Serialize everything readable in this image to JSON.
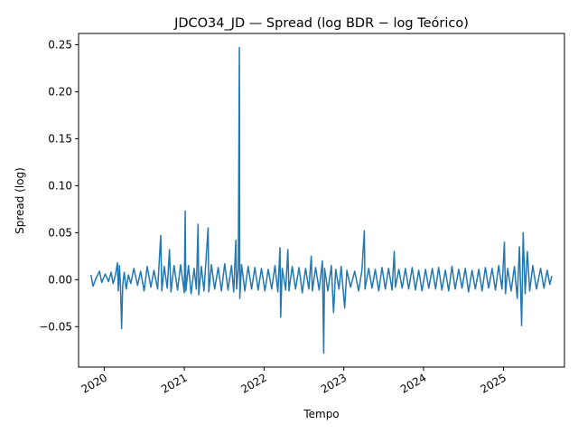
{
  "chart_data": {
    "type": "line",
    "title": "JDCO34_JD — Spread (log BDR − log Teórico)",
    "xlabel": "Tempo",
    "ylabel": "Spread (log)",
    "xlim": [
      "2019-09-05",
      "2025-10-07"
    ],
    "ylim": [
      -0.093,
      0.262
    ],
    "x_ticks": [
      {
        "date": "2020-01-01",
        "label": "2020"
      },
      {
        "date": "2021-01-01",
        "label": "2021"
      },
      {
        "date": "2022-01-01",
        "label": "2022"
      },
      {
        "date": "2023-01-01",
        "label": "2023"
      },
      {
        "date": "2024-01-01",
        "label": "2024"
      },
      {
        "date": "2025-01-01",
        "label": "2025"
      }
    ],
    "y_ticks": [
      {
        "value": -0.05,
        "label": "−0.05"
      },
      {
        "value": 0.0,
        "label": "0.00"
      },
      {
        "value": 0.05,
        "label": "0.05"
      },
      {
        "value": 0.1,
        "label": "0.10"
      },
      {
        "value": 0.15,
        "label": "0.15"
      },
      {
        "value": 0.2,
        "label": "0.20"
      },
      {
        "value": 0.25,
        "label": "0.25"
      }
    ],
    "grid": false,
    "legend": "none",
    "series": [
      {
        "color": "#1f77b4",
        "points": [
          [
            "2019-11-01",
            0.005
          ],
          [
            "2019-11-10",
            -0.007
          ],
          [
            "2019-11-25",
            0.002
          ],
          [
            "2019-12-10",
            0.009
          ],
          [
            "2019-12-20",
            -0.003
          ],
          [
            "2020-01-05",
            0.006
          ],
          [
            "2020-01-20",
            -0.002
          ],
          [
            "2020-02-01",
            0.008
          ],
          [
            "2020-02-10",
            -0.004
          ],
          [
            "2020-02-20",
            0.004
          ],
          [
            "2020-03-01",
            0.018
          ],
          [
            "2020-03-05",
            -0.012
          ],
          [
            "2020-03-10",
            0.015
          ],
          [
            "2020-03-15",
            -0.008
          ],
          [
            "2020-03-20",
            -0.052
          ],
          [
            "2020-03-25",
            -0.006
          ],
          [
            "2020-04-01",
            0.008
          ],
          [
            "2020-04-10",
            -0.01
          ],
          [
            "2020-04-20",
            0.005
          ],
          [
            "2020-05-01",
            -0.004
          ],
          [
            "2020-05-15",
            0.012
          ],
          [
            "2020-06-01",
            -0.006
          ],
          [
            "2020-06-15",
            0.009
          ],
          [
            "2020-07-01",
            -0.012
          ],
          [
            "2020-07-15",
            0.014
          ],
          [
            "2020-08-01",
            -0.008
          ],
          [
            "2020-08-15",
            0.01
          ],
          [
            "2020-09-01",
            -0.01
          ],
          [
            "2020-09-15",
            0.047
          ],
          [
            "2020-09-20",
            -0.012
          ],
          [
            "2020-10-01",
            0.014
          ],
          [
            "2020-10-15",
            -0.009
          ],
          [
            "2020-10-25",
            0.032
          ],
          [
            "2020-11-01",
            -0.013
          ],
          [
            "2020-11-15",
            0.015
          ],
          [
            "2020-12-01",
            -0.011
          ],
          [
            "2020-12-15",
            0.016
          ],
          [
            "2021-01-01",
            -0.014
          ],
          [
            "2021-01-05",
            0.073
          ],
          [
            "2021-01-08",
            -0.012
          ],
          [
            "2021-01-20",
            0.015
          ],
          [
            "2021-02-01",
            -0.015
          ],
          [
            "2021-02-15",
            0.012
          ],
          [
            "2021-02-25",
            -0.01
          ],
          [
            "2021-03-05",
            0.059
          ],
          [
            "2021-03-08",
            -0.016
          ],
          [
            "2021-03-20",
            0.014
          ],
          [
            "2021-04-01",
            -0.012
          ],
          [
            "2021-04-20",
            0.055
          ],
          [
            "2021-04-23",
            -0.013
          ],
          [
            "2021-05-05",
            0.016
          ],
          [
            "2021-05-20",
            -0.01
          ],
          [
            "2021-06-05",
            0.013
          ],
          [
            "2021-06-20",
            -0.012
          ],
          [
            "2021-07-05",
            0.017
          ],
          [
            "2021-07-20",
            -0.011
          ],
          [
            "2021-08-05",
            0.015
          ],
          [
            "2021-08-15",
            -0.013
          ],
          [
            "2021-08-25",
            0.042
          ],
          [
            "2021-08-28",
            -0.01
          ],
          [
            "2021-09-05",
            0.012
          ],
          [
            "2021-09-10",
            0.247
          ],
          [
            "2021-09-12",
            -0.02
          ],
          [
            "2021-09-20",
            0.016
          ],
          [
            "2021-10-05",
            -0.012
          ],
          [
            "2021-10-20",
            0.014
          ],
          [
            "2021-11-05",
            -0.01
          ],
          [
            "2021-11-20",
            0.013
          ],
          [
            "2021-12-05",
            -0.011
          ],
          [
            "2021-12-20",
            0.012
          ],
          [
            "2022-01-05",
            -0.012
          ],
          [
            "2022-01-20",
            0.011
          ],
          [
            "2022-02-05",
            -0.01
          ],
          [
            "2022-02-20",
            0.015
          ],
          [
            "2022-03-05",
            -0.013
          ],
          [
            "2022-03-15",
            0.034
          ],
          [
            "2022-03-18",
            -0.04
          ],
          [
            "2022-03-25",
            0.012
          ],
          [
            "2022-04-10",
            -0.011
          ],
          [
            "2022-04-20",
            0.032
          ],
          [
            "2022-04-25",
            -0.012
          ],
          [
            "2022-05-10",
            0.014
          ],
          [
            "2022-05-25",
            -0.01
          ],
          [
            "2022-06-10",
            0.013
          ],
          [
            "2022-06-25",
            -0.014
          ],
          [
            "2022-07-10",
            0.012
          ],
          [
            "2022-07-25",
            -0.01
          ],
          [
            "2022-08-05",
            0.025
          ],
          [
            "2022-08-10",
            -0.012
          ],
          [
            "2022-08-25",
            0.013
          ],
          [
            "2022-09-10",
            -0.011
          ],
          [
            "2022-09-25",
            0.02
          ],
          [
            "2022-10-01",
            -0.078
          ],
          [
            "2022-10-05",
            0.012
          ],
          [
            "2022-10-20",
            -0.012
          ],
          [
            "2022-11-05",
            0.015
          ],
          [
            "2022-11-15",
            -0.035
          ],
          [
            "2022-11-25",
            0.011
          ],
          [
            "2022-12-10",
            -0.01
          ],
          [
            "2022-12-20",
            0.014
          ],
          [
            "2023-01-05",
            -0.03
          ],
          [
            "2023-01-15",
            0.01
          ],
          [
            "2023-02-01",
            -0.008
          ],
          [
            "2023-02-20",
            0.009
          ],
          [
            "2023-03-10",
            -0.012
          ],
          [
            "2023-03-25",
            0.01
          ],
          [
            "2023-04-05",
            0.052
          ],
          [
            "2023-04-08",
            -0.01
          ],
          [
            "2023-04-25",
            0.012
          ],
          [
            "2023-05-10",
            -0.009
          ],
          [
            "2023-05-25",
            0.011
          ],
          [
            "2023-06-10",
            -0.012
          ],
          [
            "2023-06-25",
            0.013
          ],
          [
            "2023-07-10",
            -0.01
          ],
          [
            "2023-07-25",
            0.012
          ],
          [
            "2023-08-10",
            -0.011
          ],
          [
            "2023-08-20",
            0.03
          ],
          [
            "2023-08-25",
            -0.008
          ],
          [
            "2023-09-10",
            0.011
          ],
          [
            "2023-09-25",
            -0.009
          ],
          [
            "2023-10-10",
            0.012
          ],
          [
            "2023-10-25",
            -0.01
          ],
          [
            "2023-11-10",
            0.013
          ],
          [
            "2023-11-25",
            -0.011
          ],
          [
            "2023-12-10",
            0.01
          ],
          [
            "2023-12-25",
            -0.012
          ],
          [
            "2024-01-10",
            0.011
          ],
          [
            "2024-01-25",
            -0.009
          ],
          [
            "2024-02-10",
            0.012
          ],
          [
            "2024-02-25",
            -0.01
          ],
          [
            "2024-03-10",
            0.013
          ],
          [
            "2024-03-25",
            -0.011
          ],
          [
            "2024-04-10",
            0.01
          ],
          [
            "2024-04-25",
            -0.012
          ],
          [
            "2024-05-10",
            0.014
          ],
          [
            "2024-05-25",
            -0.01
          ],
          [
            "2024-06-10",
            0.011
          ],
          [
            "2024-06-25",
            -0.009
          ],
          [
            "2024-07-10",
            0.012
          ],
          [
            "2024-07-25",
            -0.013
          ],
          [
            "2024-08-10",
            0.01
          ],
          [
            "2024-08-25",
            -0.01
          ],
          [
            "2024-09-10",
            0.011
          ],
          [
            "2024-09-25",
            -0.012
          ],
          [
            "2024-10-10",
            0.013
          ],
          [
            "2024-10-25",
            -0.009
          ],
          [
            "2024-11-10",
            0.012
          ],
          [
            "2024-11-25",
            -0.011
          ],
          [
            "2024-12-10",
            0.015
          ],
          [
            "2024-12-25",
            -0.01
          ],
          [
            "2025-01-05",
            0.04
          ],
          [
            "2025-01-10",
            -0.015
          ],
          [
            "2025-01-20",
            0.012
          ],
          [
            "2025-02-05",
            -0.012
          ],
          [
            "2025-02-20",
            0.014
          ],
          [
            "2025-03-05",
            -0.02
          ],
          [
            "2025-03-15",
            0.035
          ],
          [
            "2025-03-25",
            -0.049
          ],
          [
            "2025-04-01",
            0.05
          ],
          [
            "2025-04-10",
            -0.015
          ],
          [
            "2025-04-20",
            0.03
          ],
          [
            "2025-05-01",
            -0.012
          ],
          [
            "2025-05-15",
            0.015
          ],
          [
            "2025-06-01",
            -0.01
          ],
          [
            "2025-06-20",
            0.012
          ],
          [
            "2025-07-05",
            -0.009
          ],
          [
            "2025-07-20",
            0.01
          ],
          [
            "2025-08-01",
            -0.005
          ],
          [
            "2025-08-10",
            0.004
          ]
        ]
      }
    ]
  }
}
